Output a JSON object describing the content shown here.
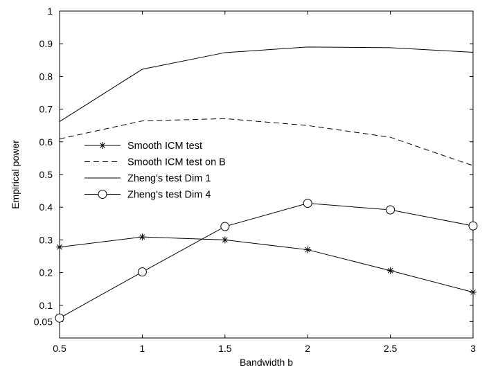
{
  "chart_data": {
    "type": "line",
    "title": "",
    "xlabel": "Bandwidth b",
    "ylabel": "Empirical power",
    "xlim": [
      0.5,
      3
    ],
    "ylim": [
      0,
      1
    ],
    "x": [
      0.5,
      1,
      1.5,
      2,
      2.5,
      3
    ],
    "x_tick_labels": [
      "0.5",
      "1",
      "1.5",
      "2",
      "2.5",
      "3"
    ],
    "y_ticks": [
      0.05,
      0.1,
      0.2,
      0.3,
      0.4,
      0.5,
      0.6,
      0.7,
      0.8,
      0.9,
      1
    ],
    "y_tick_labels": [
      "0.05",
      "0.1",
      "0.2",
      "0.3",
      "0.4",
      "0.5",
      "0.6",
      "0.7",
      "0.8",
      "0.9",
      "1"
    ],
    "grid": false,
    "legend_position": "center-left",
    "series": [
      {
        "name": "Smooth ICM test",
        "values": [
          0.278,
          0.309,
          0.3,
          0.27,
          0.206,
          0.14
        ],
        "line_style": "solid",
        "marker": "asterisk",
        "color": "#000000"
      },
      {
        "name": "Smooth ICM test on B",
        "values": [
          0.609,
          0.664,
          0.671,
          0.65,
          0.614,
          0.527
        ],
        "line_style": "dashed",
        "marker": "none",
        "color": "#000000"
      },
      {
        "name": "Zheng's test Dim 1",
        "values": [
          0.662,
          0.822,
          0.873,
          0.89,
          0.888,
          0.874
        ],
        "line_style": "solid",
        "marker": "none",
        "color": "#000000"
      },
      {
        "name": "Zheng's test Dim 4",
        "values": [
          0.061,
          0.202,
          0.341,
          0.412,
          0.392,
          0.343
        ],
        "line_style": "solid",
        "marker": "circle",
        "color": "#000000"
      }
    ]
  }
}
